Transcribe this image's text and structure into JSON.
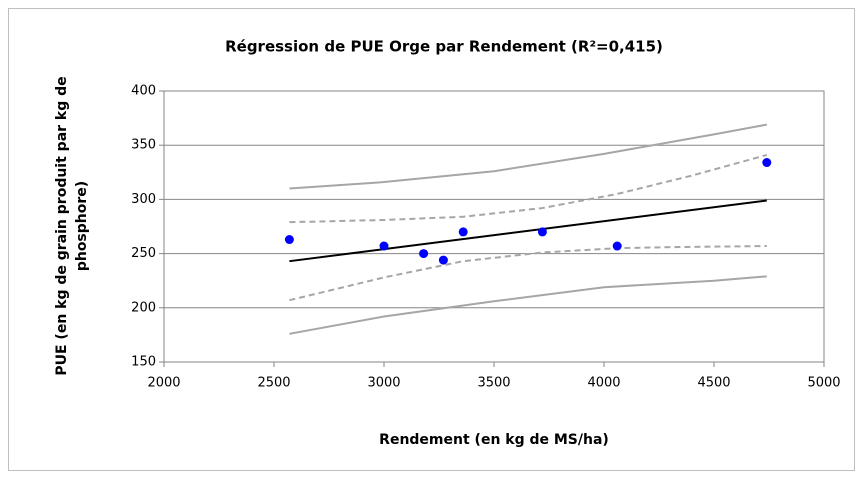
{
  "chart_data": {
    "type": "scatter",
    "title": "Régression de PUE Orge par Rendement (R²=0,415)",
    "xlabel": "Rendement (en kg de MS/ha)",
    "ylabel": [
      "PUE (en kg de grain produit par kg de",
      "phosphore)"
    ],
    "xlim": [
      2000,
      5000
    ],
    "xticks": [
      2000,
      2500,
      3000,
      3500,
      4000,
      4500,
      5000
    ],
    "ylim": [
      150,
      400
    ],
    "yticks": [
      150,
      200,
      250,
      300,
      350,
      400
    ],
    "grid": true,
    "series": [
      {
        "color": "#0000ff",
        "style": "markers",
        "x": [
          2570,
          3000,
          3180,
          3270,
          3360,
          3720,
          4060,
          4740
        ],
        "values": [
          263,
          257,
          250,
          244,
          270,
          270,
          257,
          334
        ]
      },
      {
        "color": "#000000",
        "style": "solid",
        "x": [
          2570,
          4740
        ],
        "values": [
          243,
          299
        ]
      },
      {
        "color": "#a6a6a6",
        "style": "dashed",
        "x": [
          2570,
          3000,
          3360,
          3720,
          4060,
          4400,
          4740
        ],
        "values": [
          279,
          281,
          284,
          292,
          305,
          322,
          341
        ]
      },
      {
        "color": "#a6a6a6",
        "style": "dashed",
        "x": [
          2570,
          3000,
          3360,
          3720,
          4060,
          4320,
          4740
        ],
        "values": [
          207,
          228,
          243,
          251,
          255,
          256,
          257
        ]
      },
      {
        "color": "#a6a6a6",
        "style": "solid",
        "x": [
          2570,
          3000,
          3500,
          4000,
          4500,
          4740
        ],
        "values": [
          310,
          316,
          326,
          342,
          360,
          369
        ]
      },
      {
        "color": "#a6a6a6",
        "style": "solid",
        "x": [
          2570,
          3000,
          3500,
          4000,
          4500,
          4740
        ],
        "values": [
          176,
          192,
          206,
          219,
          225,
          229
        ]
      }
    ]
  }
}
